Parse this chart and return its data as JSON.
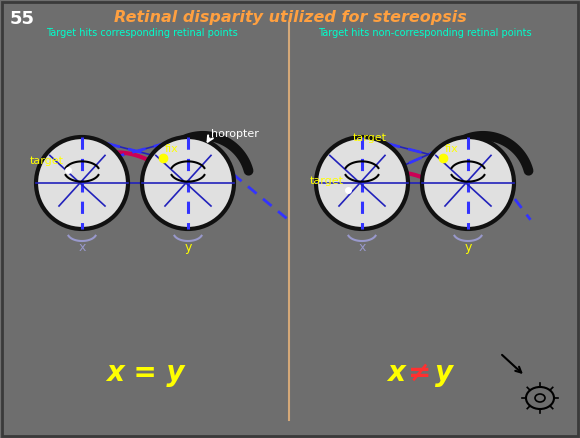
{
  "bg_color": "#6E6E6E",
  "border_color": "#3A3A3A",
  "title": "Retinal disparity utilized for stereopsis",
  "title_color": "#FFA040",
  "slide_num": "55",
  "slide_num_color": "#FFFFFF",
  "subtitle_left": "Target hits corresponding retinal points",
  "subtitle_right": "Target hits non-corresponding retinal points",
  "subtitle_color": "#00FFCC",
  "divider_color": "#D4A878",
  "equation_color": "#FFFF00",
  "neq_color": "#FF3030",
  "label_color_yellow": "#FFFF00",
  "label_color_white": "#FFFFFF",
  "label_color_lavender": "#9999CC",
  "horopter_color": "#111111",
  "arc_color": "#CC0055",
  "eye_color": "#E0E0E0",
  "eye_border": "#111111",
  "line_blue": "#2222BB",
  "dashed_blue": "#3333FF",
  "fix_dot_color": "#FFFF00",
  "target_dot_color": "#FFFFFF"
}
